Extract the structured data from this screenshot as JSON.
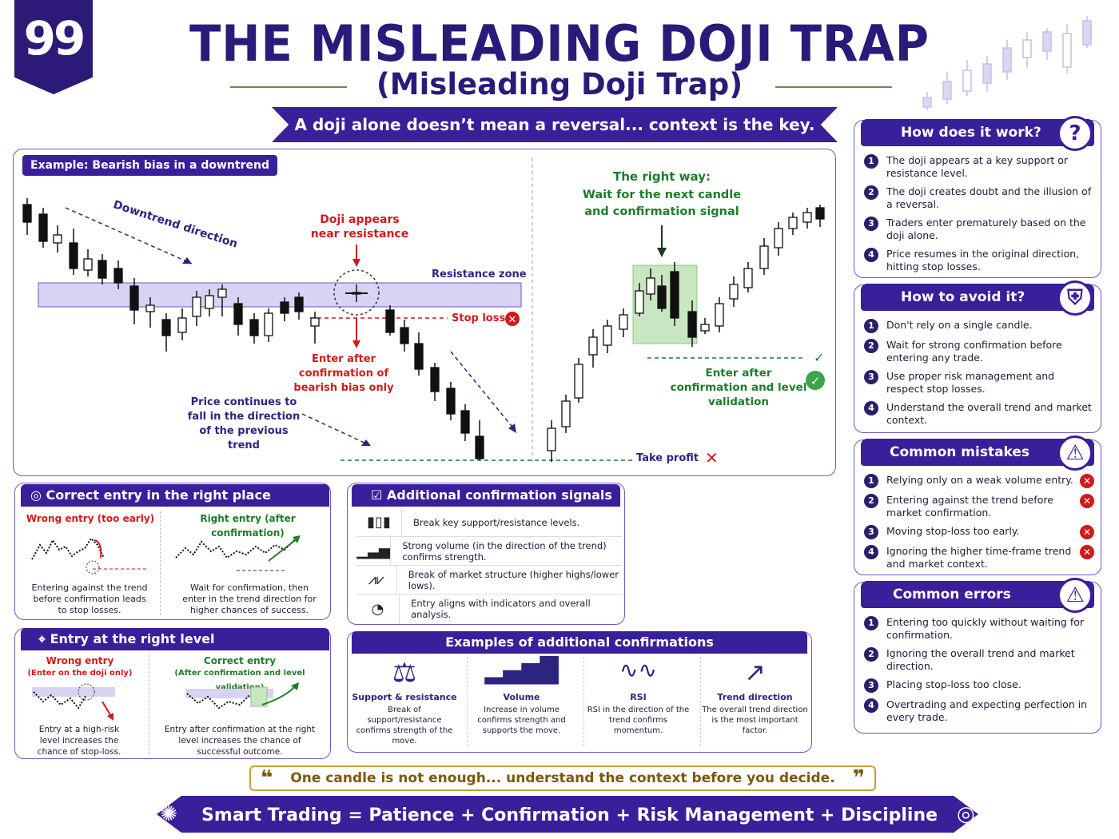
{
  "badge_number": "99",
  "title": "THE MISLEADING DOJI TRAP",
  "subtitle": "(Misleading Doji Trap)",
  "banner": "A doji alone doesn’t mean a reversal... context is the key.",
  "main_chart": {
    "tag": "Example: Bearish bias in a downtrend",
    "downtrend_label": "Downtrend direction",
    "doji_label": "Doji appears near resistance",
    "resistance_label": "Resistance zone",
    "stop_loss_label": "Stop loss",
    "enter_label": "Enter after confirmation of bearish bias only",
    "continue_label": "Price continues to fall in the direction of the previous trend",
    "take_profit_label": "Take profit",
    "right_way_title": "The right way:",
    "right_way_sub": "Wait for the next candle and confirmation signal",
    "enter_right_label": "Enter after confirmation and level validation"
  },
  "how_it_works": {
    "title": "How does it work?",
    "icon": "question-icon",
    "items": [
      "The doji appears at a key support or resistance level.",
      "The doji creates doubt and the illusion of a reversal.",
      "Traders enter prematurely based on the doji alone.",
      "Price resumes in the original direction, hitting stop losses."
    ]
  },
  "how_to_avoid": {
    "title": "How to avoid it?",
    "icon": "shield-icon",
    "items": [
      "Don't rely on a single candle.",
      "Wait for strong confirmation before entering any trade.",
      "Use proper risk management and respect stop losses.",
      "Understand the overall trend and market context."
    ]
  },
  "common_mistakes": {
    "title": "Common mistakes",
    "icon": "warning-icon",
    "items": [
      "Relying only on a weak volume entry.",
      "Entering against the trend before market confirmation.",
      "Moving stop-loss too early.",
      "Ignoring the higher time-frame trend and market context."
    ]
  },
  "common_errors": {
    "title": "Common errors",
    "icon": "warning-icon",
    "items": [
      "Entering too quickly without waiting for confirmation.",
      "Ignoring the overall trend and market direction.",
      "Placing stop-loss too close.",
      "Overtrading and expecting perfection in every trade."
    ]
  },
  "correct_entry": {
    "title": "Correct entry in the right place",
    "wrong_label": "Wrong entry (too early)",
    "right_label": "Right entry (after confirmation)",
    "wrong_desc": "Entering against the trend before confirmation leads to stop losses.",
    "right_desc": "Wait for confirmation, then enter in the trend direction for higher chances of success."
  },
  "right_level": {
    "title": "Entry at the right level",
    "wrong_label": "Wrong entry",
    "wrong_sub": "(Enter on the doji only)",
    "right_label": "Correct entry",
    "right_sub": "(After confirmation and level validation)",
    "wrong_desc": "Entry at a high-risk level increases the chance of stop-loss.",
    "right_desc": "Entry after confirmation at the right level increases the chance of successful outcome."
  },
  "signals": {
    "title": "Additional confirmation signals",
    "items": [
      {
        "icon": "candles-icon",
        "text": "Break key support/resistance levels."
      },
      {
        "icon": "volume-icon",
        "text": "Strong volume (in the direction of the trend) confirms strength."
      },
      {
        "icon": "zigzag-icon",
        "text": "Break of market structure (higher highs/lower lows)."
      },
      {
        "icon": "gauge-icon",
        "text": "Entry aligns with indicators and overall analysis."
      }
    ]
  },
  "examples": {
    "title": "Examples of additional confirmations",
    "items": [
      {
        "icon": "scale-icon",
        "label": "Support & resistance",
        "desc": "Break of support/resistance confirms strength of the move."
      },
      {
        "icon": "volume-bars-icon",
        "label": "Volume",
        "desc": "Increase in volume confirms strength and supports the move."
      },
      {
        "icon": "rsi-icon",
        "label": "RSI",
        "desc": "RSI in the direction of the trend confirms momentum."
      },
      {
        "icon": "trend-arrow-icon",
        "label": "Trend direction",
        "desc": "The overall trend direction is the most important factor."
      }
    ]
  },
  "quote": "One candle is not enough... understand the context before you decide.",
  "footer": "Smart Trading = Patience + Confirmation + Risk Management + Discipline",
  "colors": {
    "primary": "#3a1f9a",
    "red": "#d31a1a",
    "green": "#1d7d2a",
    "resistance": "#d9d3f3",
    "confirm": "#c8e6c0"
  }
}
